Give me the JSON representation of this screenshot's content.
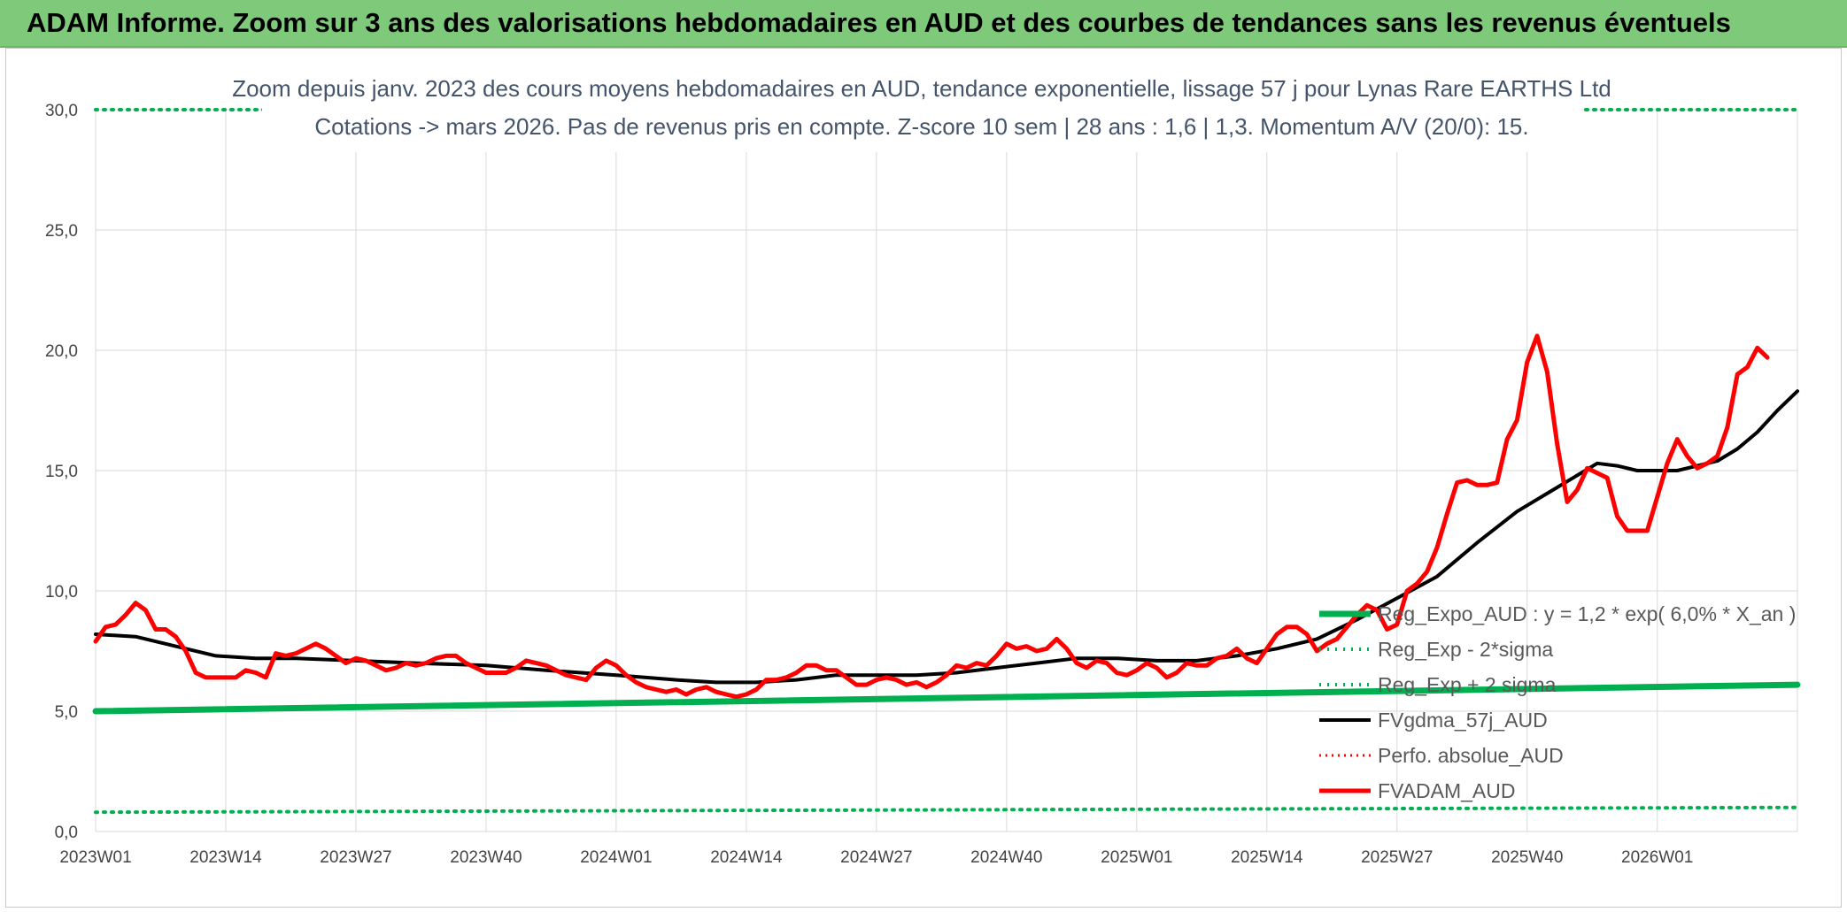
{
  "banner": {
    "title": "ADAM Informe. Zoom sur 3 ans des valorisations hebdomadaires en AUD et des courbes de tendances sans les revenus éventuels"
  },
  "chart_data": {
    "type": "line",
    "subtitle_line1": "Zoom depuis janv. 2023 des cours moyens hebdomadaires en AUD, tendance exponentielle, lissage 57 j pour Lynas Rare EARTHS Ltd",
    "subtitle_line2": "Cotations -> mars 2026. Pas de revenus pris en compte. Z-score 10 sem | 28 ans : 1,6 | 1,3. Momentum A/V (20/0): 15.",
    "ylim": [
      0,
      30
    ],
    "y_ticks": [
      "0,0",
      "5,0",
      "10,0",
      "15,0",
      "20,0",
      "25,0",
      "30,0"
    ],
    "x_ticks": [
      "2023W01",
      "2023W14",
      "2023W27",
      "2023W40",
      "2024W01",
      "2024W14",
      "2024W27",
      "2024W40",
      "2025W01",
      "2025W14",
      "2025W27",
      "2025W40",
      "2026W01"
    ],
    "x_range_weeks": [
      0,
      170
    ],
    "grid": true,
    "legend_position": "bottom-right",
    "legend": [
      "Reg_Expo_AUD : y = 1,2 * exp( 6,0% *  X_an )",
      "Reg_Exp - 2*sigma",
      "Reg_Exp + 2 sigma",
      "FVgdma_57j_AUD",
      "Perfo. absolue_AUD",
      "FVADAM_AUD"
    ],
    "colors": {
      "reg_expo": "#00b050",
      "reg_minus": "#00b050",
      "reg_plus": "#00b050",
      "gdma": "#000000",
      "perfo": "#ff0000",
      "fvadam": "#ff0000"
    },
    "series": [
      {
        "name": "Reg_Expo_AUD : y = 1,2 * exp( 6,0% *  X_an )",
        "points": [
          [
            0,
            5.0
          ],
          [
            170,
            6.1
          ]
        ]
      },
      {
        "name": "Reg_Exp - 2*sigma",
        "points": [
          [
            0,
            0.8
          ],
          [
            170,
            1.0
          ]
        ]
      },
      {
        "name": "Reg_Exp + 2 sigma",
        "points": [
          [
            0,
            30.0
          ],
          [
            170,
            30.0
          ]
        ]
      },
      {
        "name": "FVgdma_57j_AUD",
        "points": [
          [
            0,
            8.2
          ],
          [
            4,
            8.1
          ],
          [
            8,
            7.7
          ],
          [
            12,
            7.3
          ],
          [
            16,
            7.2
          ],
          [
            20,
            7.2
          ],
          [
            26,
            7.1
          ],
          [
            32,
            7.0
          ],
          [
            39,
            6.9
          ],
          [
            45,
            6.7
          ],
          [
            52,
            6.5
          ],
          [
            58,
            6.3
          ],
          [
            62,
            6.2
          ],
          [
            66,
            6.2
          ],
          [
            70,
            6.3
          ],
          [
            74,
            6.5
          ],
          [
            78,
            6.5
          ],
          [
            82,
            6.5
          ],
          [
            86,
            6.6
          ],
          [
            90,
            6.8
          ],
          [
            94,
            7.0
          ],
          [
            98,
            7.2
          ],
          [
            102,
            7.2
          ],
          [
            106,
            7.1
          ],
          [
            110,
            7.1
          ],
          [
            114,
            7.3
          ],
          [
            118,
            7.6
          ],
          [
            122,
            8.0
          ],
          [
            126,
            8.8
          ],
          [
            130,
            9.7
          ],
          [
            134,
            10.6
          ],
          [
            138,
            12.0
          ],
          [
            142,
            13.3
          ],
          [
            146,
            14.3
          ],
          [
            150,
            15.3
          ],
          [
            152,
            15.2
          ],
          [
            154,
            15.0
          ],
          [
            158,
            15.0
          ],
          [
            162,
            15.4
          ],
          [
            164,
            15.9
          ],
          [
            166,
            16.6
          ],
          [
            168,
            17.5
          ],
          [
            170,
            18.3
          ]
        ]
      },
      {
        "name": "FVADAM_AUD",
        "points": [
          [
            0,
            7.9
          ],
          [
            1,
            8.5
          ],
          [
            2,
            8.6
          ],
          [
            3,
            9.0
          ],
          [
            4,
            9.5
          ],
          [
            5,
            9.2
          ],
          [
            6,
            8.4
          ],
          [
            7,
            8.4
          ],
          [
            8,
            8.1
          ],
          [
            9,
            7.5
          ],
          [
            10,
            6.6
          ],
          [
            11,
            6.4
          ],
          [
            12,
            6.4
          ],
          [
            13,
            6.4
          ],
          [
            14,
            6.4
          ],
          [
            15,
            6.7
          ],
          [
            16,
            6.6
          ],
          [
            17,
            6.4
          ],
          [
            18,
            7.4
          ],
          [
            19,
            7.3
          ],
          [
            20,
            7.4
          ],
          [
            21,
            7.6
          ],
          [
            22,
            7.8
          ],
          [
            23,
            7.6
          ],
          [
            24,
            7.3
          ],
          [
            25,
            7.0
          ],
          [
            26,
            7.2
          ],
          [
            27,
            7.1
          ],
          [
            28,
            6.9
          ],
          [
            29,
            6.7
          ],
          [
            30,
            6.8
          ],
          [
            31,
            7.0
          ],
          [
            32,
            6.9
          ],
          [
            33,
            7.0
          ],
          [
            34,
            7.2
          ],
          [
            35,
            7.3
          ],
          [
            36,
            7.3
          ],
          [
            37,
            7.0
          ],
          [
            38,
            6.8
          ],
          [
            39,
            6.6
          ],
          [
            40,
            6.6
          ],
          [
            41,
            6.6
          ],
          [
            42,
            6.8
          ],
          [
            43,
            7.1
          ],
          [
            44,
            7.0
          ],
          [
            45,
            6.9
          ],
          [
            46,
            6.7
          ],
          [
            47,
            6.5
          ],
          [
            48,
            6.4
          ],
          [
            49,
            6.3
          ],
          [
            50,
            6.8
          ],
          [
            51,
            7.1
          ],
          [
            52,
            6.9
          ],
          [
            53,
            6.5
          ],
          [
            54,
            6.2
          ],
          [
            55,
            6.0
          ],
          [
            56,
            5.9
          ],
          [
            57,
            5.8
          ],
          [
            58,
            5.9
          ],
          [
            59,
            5.7
          ],
          [
            60,
            5.9
          ],
          [
            61,
            6.0
          ],
          [
            62,
            5.8
          ],
          [
            63,
            5.7
          ],
          [
            64,
            5.6
          ],
          [
            65,
            5.7
          ],
          [
            66,
            5.9
          ],
          [
            67,
            6.3
          ],
          [
            68,
            6.3
          ],
          [
            69,
            6.4
          ],
          [
            70,
            6.6
          ],
          [
            71,
            6.9
          ],
          [
            72,
            6.9
          ],
          [
            73,
            6.7
          ],
          [
            74,
            6.7
          ],
          [
            75,
            6.4
          ],
          [
            76,
            6.1
          ],
          [
            77,
            6.1
          ],
          [
            78,
            6.3
          ],
          [
            79,
            6.4
          ],
          [
            80,
            6.3
          ],
          [
            81,
            6.1
          ],
          [
            82,
            6.2
          ],
          [
            83,
            6.0
          ],
          [
            84,
            6.2
          ],
          [
            85,
            6.5
          ],
          [
            86,
            6.9
          ],
          [
            87,
            6.8
          ],
          [
            88,
            7.0
          ],
          [
            89,
            6.9
          ],
          [
            90,
            7.3
          ],
          [
            91,
            7.8
          ],
          [
            92,
            7.6
          ],
          [
            93,
            7.7
          ],
          [
            94,
            7.5
          ],
          [
            95,
            7.6
          ],
          [
            96,
            8.0
          ],
          [
            97,
            7.6
          ],
          [
            98,
            7.0
          ],
          [
            99,
            6.8
          ],
          [
            100,
            7.1
          ],
          [
            101,
            7.0
          ],
          [
            102,
            6.6
          ],
          [
            103,
            6.5
          ],
          [
            104,
            6.7
          ],
          [
            105,
            7.0
          ],
          [
            106,
            6.8
          ],
          [
            107,
            6.4
          ],
          [
            108,
            6.6
          ],
          [
            109,
            7.0
          ],
          [
            110,
            6.9
          ],
          [
            111,
            6.9
          ],
          [
            112,
            7.2
          ],
          [
            113,
            7.3
          ],
          [
            114,
            7.6
          ],
          [
            115,
            7.2
          ],
          [
            116,
            7.0
          ],
          [
            117,
            7.6
          ],
          [
            118,
            8.2
          ],
          [
            119,
            8.5
          ],
          [
            120,
            8.5
          ],
          [
            121,
            8.2
          ],
          [
            122,
            7.5
          ],
          [
            123,
            7.8
          ],
          [
            124,
            8.0
          ],
          [
            125,
            8.5
          ],
          [
            126,
            9.0
          ],
          [
            127,
            9.4
          ],
          [
            128,
            9.2
          ],
          [
            129,
            8.4
          ],
          [
            130,
            8.6
          ],
          [
            131,
            10.0
          ],
          [
            132,
            10.3
          ],
          [
            133,
            10.8
          ],
          [
            134,
            11.8
          ],
          [
            135,
            13.2
          ],
          [
            136,
            14.5
          ],
          [
            137,
            14.6
          ],
          [
            138,
            14.4
          ],
          [
            139,
            14.4
          ],
          [
            140,
            14.5
          ],
          [
            141,
            16.3
          ],
          [
            142,
            17.1
          ],
          [
            143,
            19.5
          ],
          [
            144,
            20.6
          ],
          [
            145,
            19.1
          ],
          [
            146,
            16.1
          ],
          [
            147,
            13.7
          ],
          [
            148,
            14.2
          ],
          [
            149,
            15.1
          ],
          [
            150,
            14.9
          ],
          [
            151,
            14.7
          ],
          [
            152,
            13.1
          ],
          [
            153,
            12.5
          ],
          [
            154,
            12.5
          ],
          [
            155,
            12.5
          ],
          [
            156,
            13.9
          ],
          [
            157,
            15.3
          ],
          [
            158,
            16.3
          ],
          [
            159,
            15.6
          ],
          [
            160,
            15.1
          ],
          [
            161,
            15.3
          ],
          [
            162,
            15.6
          ],
          [
            163,
            16.8
          ],
          [
            164,
            19.0
          ],
          [
            165,
            19.3
          ],
          [
            166,
            20.1
          ],
          [
            167,
            19.7
          ]
        ]
      }
    ]
  }
}
